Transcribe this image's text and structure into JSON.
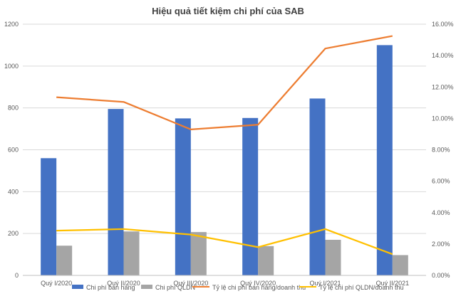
{
  "chart_data": {
    "type": "bar+line",
    "title": "Hiệu quả tiết kiệm chi phí của SAB",
    "categories": [
      "Quý I/2020",
      "Quý II/2020",
      "Quý III/2020",
      "Quý IV/2020",
      "Quý I/2021",
      "Quý II/2021"
    ],
    "y_left": {
      "min": 0,
      "max": 1200,
      "ticks": [
        "0",
        "200",
        "400",
        "600",
        "800",
        "1000",
        "1200"
      ],
      "tick_values": [
        0,
        200,
        400,
        600,
        800,
        1000,
        1200
      ]
    },
    "y_right": {
      "min": 0,
      "max": 16,
      "ticks": [
        "0.00%",
        "2.00%",
        "4.00%",
        "6.00%",
        "8.00%",
        "10.00%",
        "12.00%",
        "14.00%",
        "16.00%"
      ],
      "tick_values": [
        0,
        2,
        4,
        6,
        8,
        10,
        12,
        14,
        16
      ]
    },
    "bar_series": [
      {
        "name": "Chi phí bán hàng",
        "color": "#4472C4",
        "values": [
          560,
          795,
          750,
          752,
          845,
          1100
        ]
      },
      {
        "name": "Chi phí QLDN",
        "color": "#A5A5A5",
        "values": [
          142,
          210,
          207,
          140,
          170,
          97
        ]
      }
    ],
    "line_series": [
      {
        "name": "Tỷ lệ chi phí bán hàng/doanh thu",
        "color": "#ED7D31",
        "values": [
          11.35,
          11.05,
          9.3,
          9.6,
          14.45,
          15.25
        ]
      },
      {
        "name": "Tỷ lệ chi phí QLDN/doanh thu",
        "color": "#FFC000",
        "values": [
          2.85,
          2.95,
          2.6,
          1.8,
          2.95,
          1.35
        ]
      }
    ],
    "legend_position": "bottom"
  }
}
